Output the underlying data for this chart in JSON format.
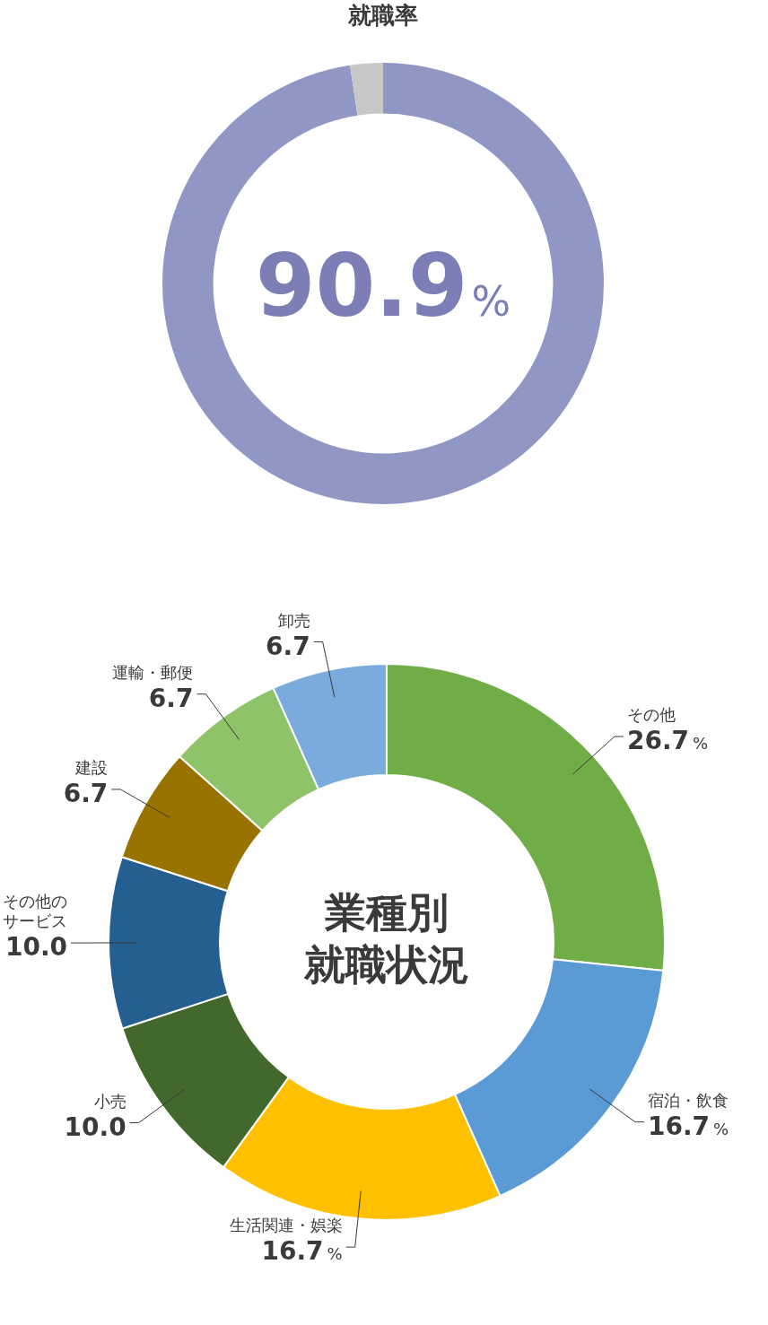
{
  "chart_data": [
    {
      "type": "donut",
      "title": "就職率",
      "categories": [
        null,
        null
      ],
      "values": [
        97.6,
        2.4
      ],
      "colors": [
        "#9197c4",
        "#c8c8c8"
      ],
      "annotations": [
        "90.9%"
      ]
    },
    {
      "type": "donut",
      "title": "業種別就職状況",
      "categories": [
        "その他",
        "宿泊・飲食",
        "生活関連・娯楽",
        "小売",
        "その他のサービス",
        "建設",
        "運輸・郵便",
        "卸売"
      ],
      "values": [
        26.7,
        16.7,
        16.7,
        10.0,
        10.0,
        6.7,
        6.7,
        6.7
      ],
      "colors": [
        "#70ad47",
        "#5b9bd5",
        "#ffc000",
        "#43682b",
        "#255e91",
        "#997300",
        "#8fc36a",
        "#7aabdc"
      ],
      "value_labels": [
        "26.7%",
        "16.7%",
        "16.7%",
        "10.0",
        "10.0",
        "6.7",
        "6.7",
        "6.7"
      ]
    }
  ]
}
